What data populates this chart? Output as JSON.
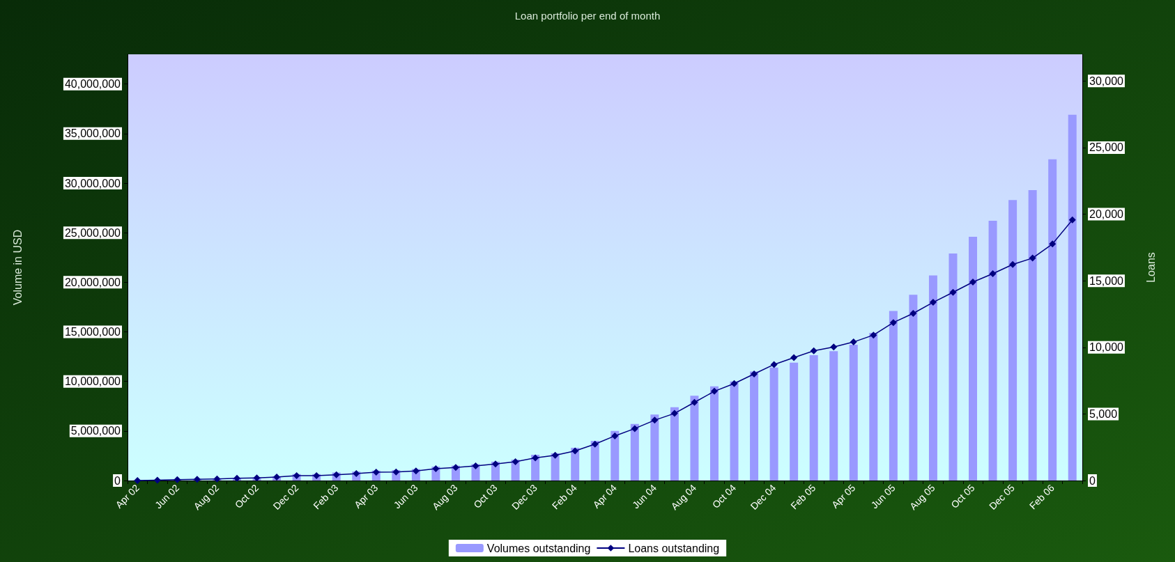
{
  "chart_data": {
    "type": "bar",
    "title": "Loan portfolio per end of month",
    "ylabel": "Volume in USD",
    "y2label": "Loans",
    "categories": [
      "Apr 02",
      null,
      "Jun 02",
      null,
      "Aug 02",
      null,
      "Oct 02",
      null,
      "Dec 02",
      null,
      "Feb 03",
      null,
      "Apr 03",
      null,
      "Jun 03",
      null,
      "Aug 03",
      null,
      "Oct 03",
      null,
      "Dec 03",
      null,
      "Feb 04",
      null,
      "Apr 04",
      null,
      "Jun 04",
      null,
      "Aug 04",
      null,
      "Oct 04",
      null,
      "Dec 04",
      null,
      "Feb 05",
      null,
      "Apr 05",
      null,
      "Jun 05",
      null,
      "Aug 05",
      null,
      "Oct 05",
      null,
      "Dec 05",
      null,
      "Feb 06",
      null
    ],
    "series": [
      {
        "name": "Volumes outstanding",
        "color": "#9999ff",
        "values": [
          20000,
          50000,
          80000,
          100000,
          200000,
          250000,
          300000,
          400000,
          650000,
          650000,
          800000,
          900000,
          1000000,
          1050000,
          1150000,
          1400000,
          1500000,
          1650000,
          1900000,
          2100000,
          2600000,
          2750000,
          3300000,
          4000000,
          5000000,
          5700000,
          6650000,
          7400000,
          8550000,
          9500000,
          10000000,
          11000000,
          11400000,
          11900000,
          12650000,
          13050000,
          13700000,
          14900000,
          17100000,
          18750000,
          20700000,
          22900000,
          24600000,
          26200000,
          28300000,
          29300000,
          32400000,
          36900000
        ]
      },
      {
        "name": "Loans outstanding",
        "type": "line",
        "axis": "y2",
        "color": "#000080",
        "values": [
          0,
          20,
          60,
          90,
          120,
          170,
          200,
          260,
          370,
          370,
          430,
          520,
          630,
          640,
          720,
          890,
          980,
          1100,
          1240,
          1410,
          1700,
          1900,
          2220,
          2730,
          3350,
          3900,
          4530,
          5040,
          5870,
          6700,
          7280,
          8000,
          8710,
          9230,
          9740,
          10030,
          10400,
          10920,
          11860,
          12550,
          13380,
          14130,
          14900,
          15530,
          16220,
          16700,
          17760,
          19570
        ]
      }
    ],
    "ylim": [
      0,
      43000000
    ],
    "yticks": [
      0,
      {
        "value": 5000000,
        "label": "5,000,000"
      },
      {
        "value": 10000000,
        "label": "10,000,000"
      },
      {
        "value": 15000000,
        "label": "15,000,000"
      },
      {
        "value": 20000000,
        "label": "20,000,000"
      },
      {
        "value": 25000000,
        "label": "25,000,000"
      },
      {
        "value": 30000000,
        "label": "30,000,000"
      },
      {
        "value": 35000000,
        "label": "35,000,000"
      },
      {
        "value": 40000000,
        "label": "40,000,000"
      }
    ],
    "y2lim": [
      0,
      32000
    ],
    "y2ticks": [
      0,
      {
        "value": 5000,
        "label": "5,000"
      },
      {
        "value": 10000,
        "label": "10,000"
      },
      {
        "value": 15000,
        "label": "15,000"
      },
      {
        "value": 20000,
        "label": "20,000"
      },
      {
        "value": 25000,
        "label": "25,000"
      },
      {
        "value": 30000,
        "label": "30,000"
      }
    ],
    "marker": "diamond",
    "legend": "bottom"
  }
}
